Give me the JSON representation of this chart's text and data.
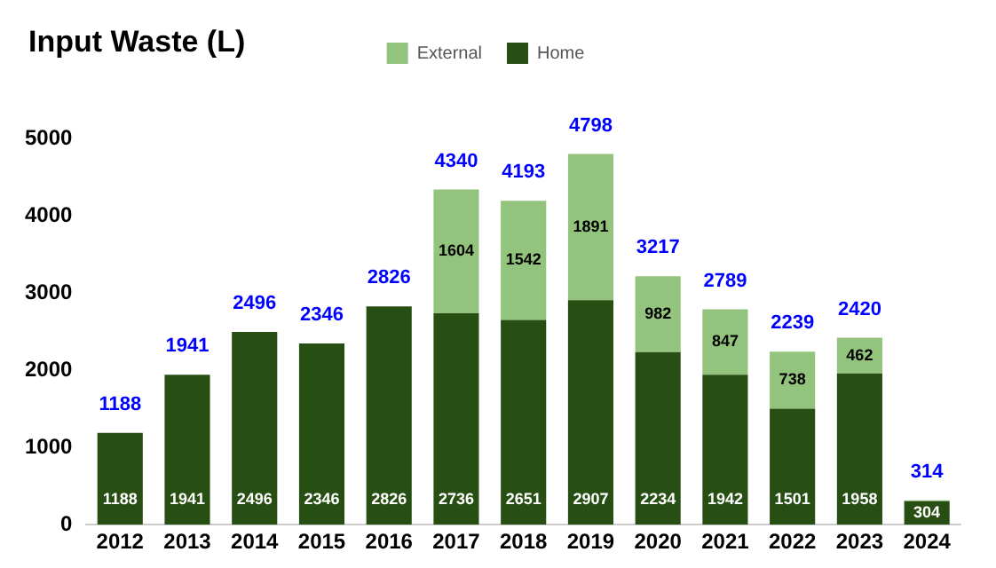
{
  "chart_data": {
    "type": "bar",
    "title": "Input Waste (L)",
    "stacked": true,
    "legend": "top",
    "grid": false,
    "categories": [
      "2012",
      "2013",
      "2014",
      "2015",
      "2016",
      "2017",
      "2018",
      "2019",
      "2020",
      "2021",
      "2022",
      "2023",
      "2024"
    ],
    "series": [
      {
        "name": "Home",
        "color": "#274e13",
        "values": [
          1188,
          1941,
          2496,
          2346,
          2826,
          2736,
          2651,
          2907,
          2234,
          1942,
          1501,
          1958,
          304
        ],
        "value_labels": [
          "1188",
          "1941",
          "2496",
          "2346",
          "2826",
          "2736",
          "2651",
          "2907",
          "2234",
          "1942",
          "1501",
          "1958",
          "304"
        ]
      },
      {
        "name": "External",
        "color": "#93c47d",
        "values": [
          null,
          null,
          null,
          null,
          null,
          1604,
          1542,
          1891,
          982,
          847,
          738,
          462,
          10
        ],
        "value_labels": [
          null,
          null,
          null,
          null,
          null,
          "1604",
          "1542",
          "1891",
          "982",
          "847",
          "738",
          "462",
          null
        ]
      }
    ],
    "totals": [
      "1188",
      "1941",
      "2496",
      "2346",
      "2826",
      "4340",
      "4193",
      "4798",
      "3217",
      "2789",
      "2239",
      "2420",
      "314"
    ],
    "ylim": [
      0,
      5000
    ],
    "yticks": [
      0,
      1000,
      2000,
      3000,
      4000,
      5000
    ]
  }
}
